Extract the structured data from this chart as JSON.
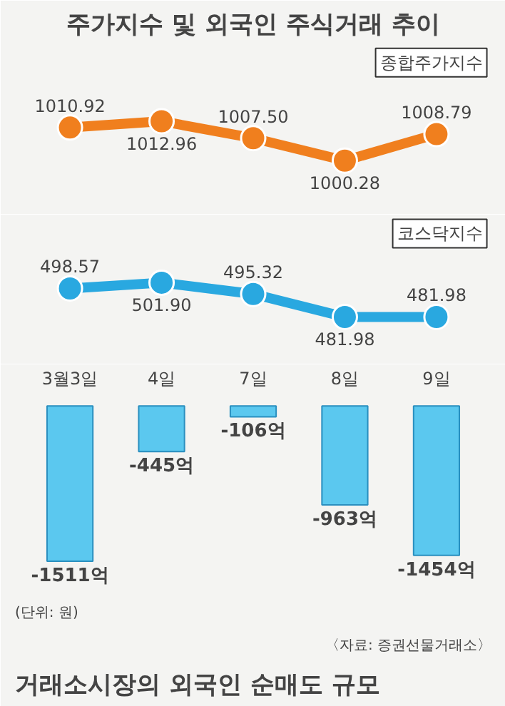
{
  "chart_data": [
    {
      "type": "line",
      "title": "주가지수 및 외국인 주식거래 추이",
      "marker": "circle",
      "series": [
        {
          "name": "종합주가지수",
          "color": "#f07f1e",
          "values": [
            1010.92,
            1012.96,
            1007.5,
            1000.28,
            1008.79
          ],
          "value_labels": [
            "1010.92",
            "1012.96",
            "1007.50",
            "1000.28",
            "1008.79"
          ]
        }
      ]
    },
    {
      "type": "line",
      "marker": "circle",
      "series": [
        {
          "name": "코스닥지수",
          "color": "#29a8e0",
          "values": [
            498.57,
            501.9,
            495.32,
            481.98,
            481.98
          ],
          "value_labels": [
            "498.57",
            "501.90",
            "495.32",
            "481.98",
            "481.98"
          ]
        }
      ]
    },
    {
      "type": "bar",
      "title": "거래소시장의 외국인 순매도 규모",
      "categories": [
        "3월3일",
        "4일",
        "7일",
        "8일",
        "9일"
      ],
      "tick_labels": "x",
      "color": "#5bc8ef",
      "values": [
        -1511,
        -445,
        -106,
        -963,
        -1454
      ],
      "value_labels": [
        "-1511억",
        "-445억",
        "-106억",
        "-963억",
        "-1454억"
      ],
      "annotations": [
        "(단위: 원)",
        "〈자료: 증권선물거래소〉"
      ]
    }
  ]
}
